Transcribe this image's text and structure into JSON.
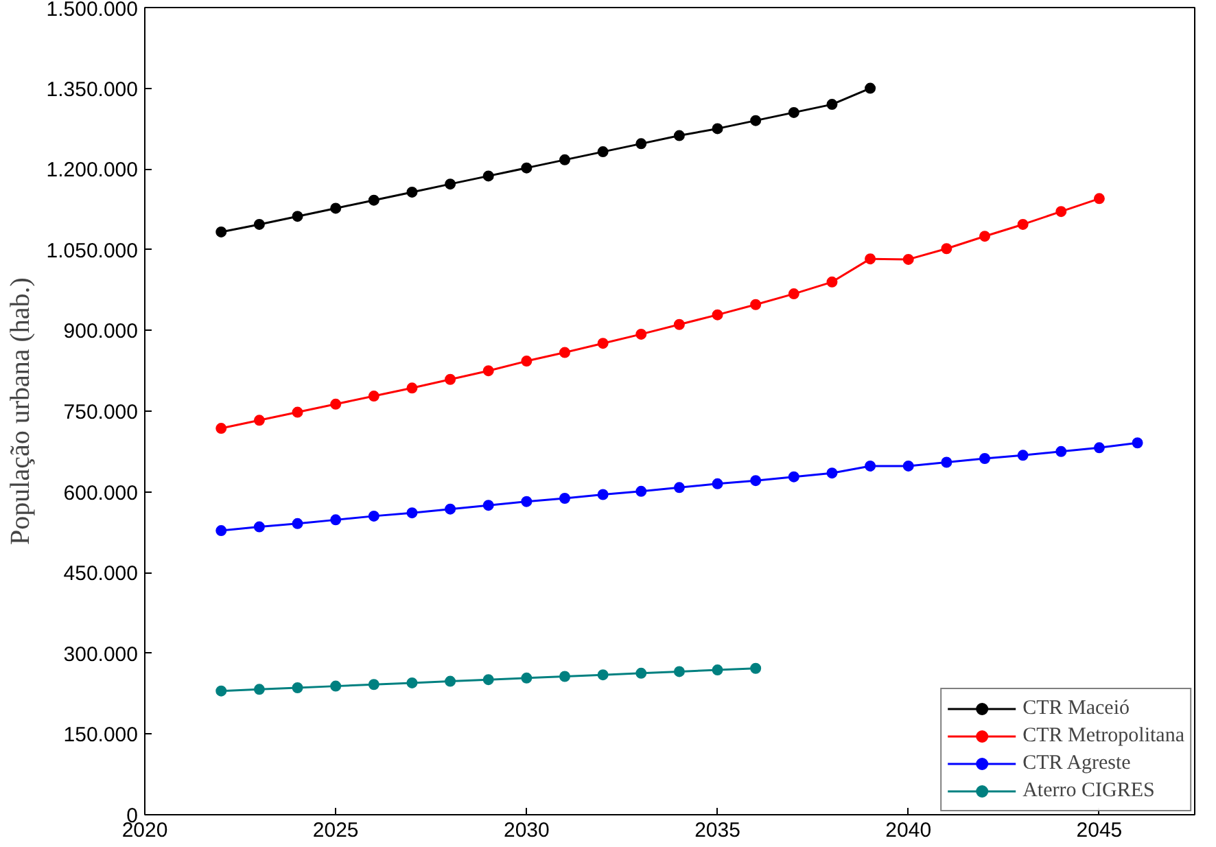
{
  "chart_data": {
    "type": "line",
    "ylabel": "População urbana (hab.)",
    "xlim": [
      2020,
      2047.5
    ],
    "xticks": [
      2020,
      2025,
      2030,
      2035,
      2040,
      2045
    ],
    "ylim": [
      0,
      1500000
    ],
    "yticks": [
      {
        "value": 0,
        "label": "0"
      },
      {
        "value": 150000,
        "label": "150.000"
      },
      {
        "value": 300000,
        "label": "300.000"
      },
      {
        "value": 450000,
        "label": "450.000"
      },
      {
        "value": 600000,
        "label": "600.000"
      },
      {
        "value": 750000,
        "label": "750.000"
      },
      {
        "value": 900000,
        "label": "900.000"
      },
      {
        "value": 1050000,
        "label": "1.050.000"
      },
      {
        "value": 1200000,
        "label": "1.200.000"
      },
      {
        "value": 1350000,
        "label": "1.350.000"
      },
      {
        "value": 1500000,
        "label": "1.500.000"
      }
    ],
    "grid": false,
    "legend": "bottom right",
    "marker": "circle",
    "line_style": "solid",
    "series": [
      {
        "name": "CTR Maceió",
        "color": "#000000",
        "x": [
          2022,
          2023,
          2024,
          2025,
          2026,
          2027,
          2028,
          2029,
          2030,
          2031,
          2032,
          2033,
          2034,
          2035,
          2036,
          2037,
          2038,
          2039
        ],
        "values": [
          1083000,
          1097000,
          1112000,
          1127000,
          1142000,
          1157000,
          1172000,
          1187000,
          1202000,
          1217000,
          1232000,
          1247000,
          1262000,
          1275000,
          1290000,
          1305000,
          1320000,
          1350000
        ]
      },
      {
        "name": "CTR Metropolitana",
        "color": "#ff0000",
        "x": [
          2022,
          2023,
          2024,
          2025,
          2026,
          2027,
          2028,
          2029,
          2030,
          2031,
          2032,
          2033,
          2034,
          2035,
          2036,
          2037,
          2038,
          2039,
          2040,
          2041,
          2042,
          2043,
          2044,
          2045
        ],
        "values": [
          718000,
          733000,
          748000,
          763000,
          778000,
          793000,
          809000,
          825000,
          843000,
          859000,
          876000,
          893000,
          911000,
          929000,
          948000,
          968000,
          990000,
          1033000,
          1032000,
          1052000,
          1075000,
          1097000,
          1121000,
          1145000
        ]
      },
      {
        "name": "CTR Agreste",
        "color": "#0000ff",
        "x": [
          2022,
          2023,
          2024,
          2025,
          2026,
          2027,
          2028,
          2029,
          2030,
          2031,
          2032,
          2033,
          2034,
          2035,
          2036,
          2037,
          2038,
          2039,
          2040,
          2041,
          2042,
          2043,
          2044,
          2045,
          2046
        ],
        "values": [
          528000,
          535000,
          541000,
          548000,
          555000,
          561000,
          568000,
          575000,
          582000,
          588000,
          595000,
          601000,
          608000,
          615000,
          621000,
          628000,
          635000,
          648000,
          648000,
          655000,
          662000,
          668000,
          675000,
          682000,
          691000
        ]
      },
      {
        "name": "Aterro CIGRES",
        "color": "#008080",
        "x": [
          2022,
          2023,
          2024,
          2025,
          2026,
          2027,
          2028,
          2029,
          2030,
          2031,
          2032,
          2033,
          2034,
          2035,
          2036
        ],
        "values": [
          230000,
          233000,
          236000,
          239000,
          242000,
          245000,
          248000,
          251000,
          254000,
          257000,
          260000,
          263000,
          266000,
          269000,
          272000
        ]
      }
    ]
  }
}
